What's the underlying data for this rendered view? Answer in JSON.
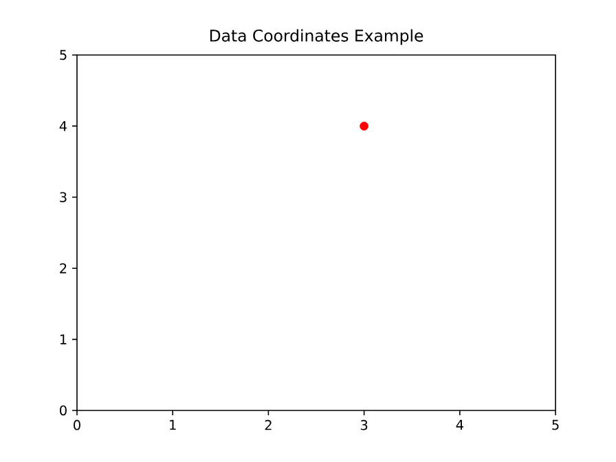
{
  "chart_data": {
    "type": "scatter",
    "title": "Data Coordinates Example",
    "x": [
      3
    ],
    "values": [
      4
    ],
    "color": "#ff0000",
    "xlim": [
      0,
      5
    ],
    "ylim": [
      0,
      5
    ],
    "xticks": [
      0,
      1,
      2,
      3,
      4,
      5
    ],
    "yticks": [
      0,
      1,
      2,
      3,
      4,
      5
    ],
    "grid": false
  }
}
